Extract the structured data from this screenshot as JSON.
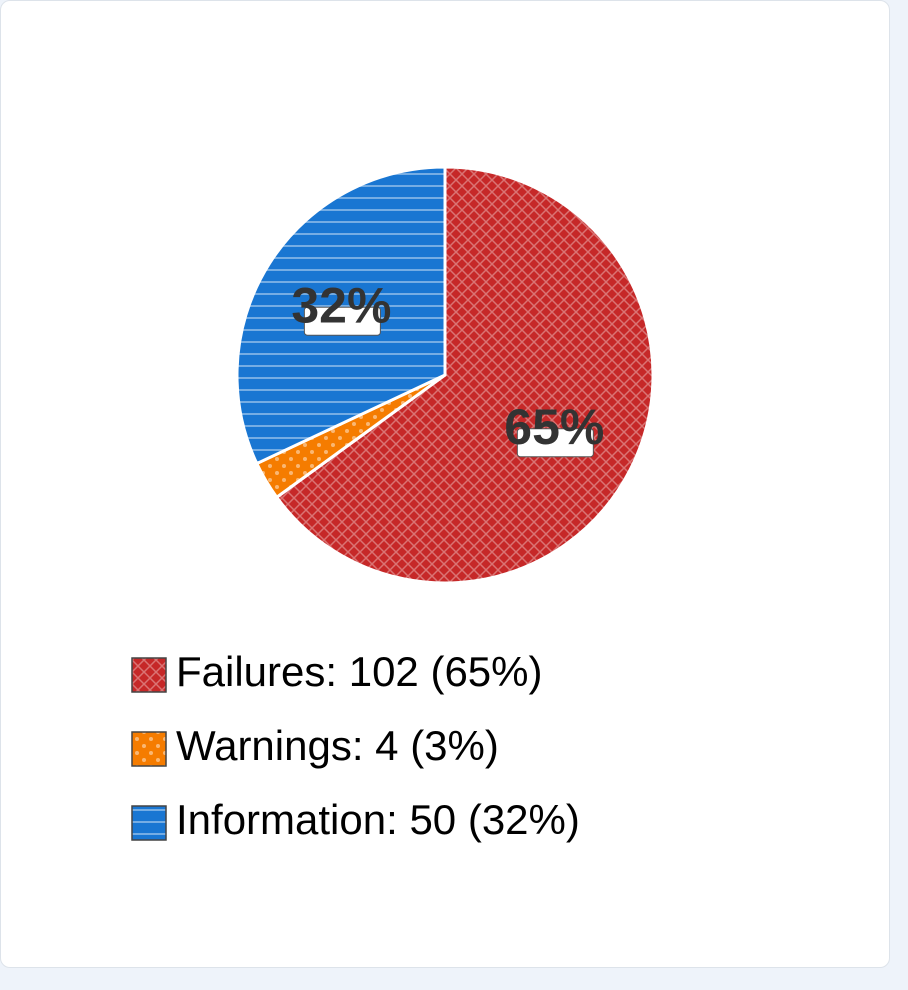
{
  "chart_data": {
    "type": "pie",
    "categories": [
      "Failures: 102 (65%)",
      "Warnings: 4 (3%)",
      "Information: 50 (32%)"
    ],
    "values": [
      65,
      3,
      32
    ],
    "value_labels": [
      "65%",
      null,
      "32%"
    ],
    "colors": [
      "#c62828",
      "#f57c00",
      "#1976d2"
    ]
  }
}
